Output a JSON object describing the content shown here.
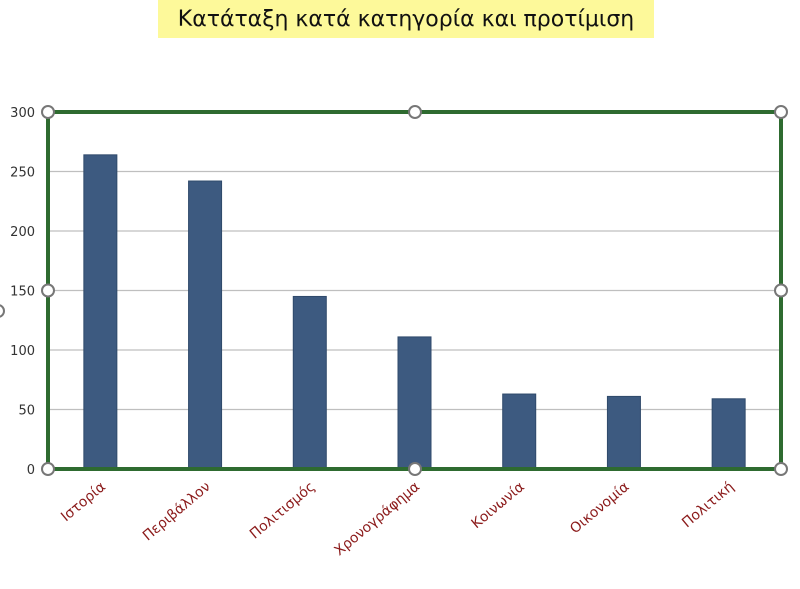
{
  "title": "Κατάταξη κατά κατηγορία και προτίμιση",
  "colors": {
    "bar": "#3d5a80",
    "bar_edge": "#2f4a6b",
    "frame": "#2e6b30",
    "grid": "#bfbfbf",
    "xlabel": "#8b1a1a",
    "title_bg": "#fdf99a",
    "handle_fill": "#ffffff",
    "handle_stroke": "#777777"
  },
  "chart_data": {
    "type": "bar",
    "title": "",
    "xlabel": "",
    "ylabel": "",
    "categories": [
      "Ιστορία",
      "Περιβάλλον",
      "Πολιτισμός",
      "Χρονογράφημα",
      "Κοινωνία",
      "Οικονομία",
      "Πολιτική"
    ],
    "values": [
      264,
      242,
      145,
      111,
      63,
      61,
      59
    ],
    "ylim": [
      0,
      300
    ],
    "yticks": [
      "0",
      "50",
      "100",
      "150",
      "200",
      "250",
      "300"
    ],
    "grid": true,
    "legend": "none",
    "selected": true
  }
}
